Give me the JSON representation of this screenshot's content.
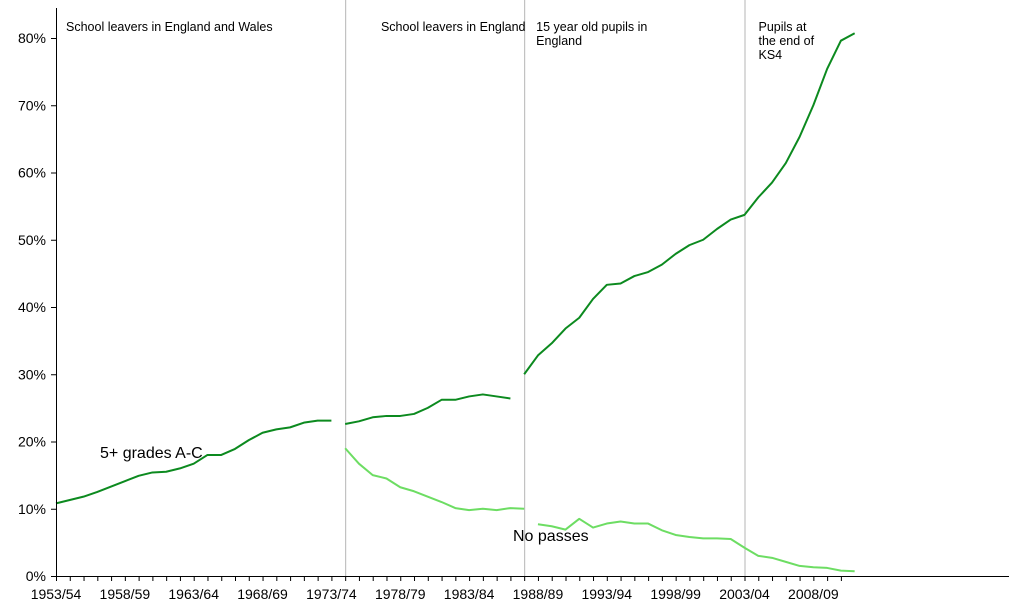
{
  "chart_data": {
    "type": "line",
    "x": [
      "1953/54",
      "1954/55",
      "1955/56",
      "1956/57",
      "1957/58",
      "1958/59",
      "1959/60",
      "1960/61",
      "1961/62",
      "1962/63",
      "1963/64",
      "1964/65",
      "1965/66",
      "1966/67",
      "1967/68",
      "1968/69",
      "1969/70",
      "1970/71",
      "1971/72",
      "1972/73",
      "1973/74",
      "1974/75",
      "1975/76",
      "1976/77",
      "1977/78",
      "1978/79",
      "1979/80",
      "1980/81",
      "1981/82",
      "1982/83",
      "1983/84",
      "1984/85",
      "1985/86",
      "1986/87",
      "1987/88",
      "1988/89",
      "1989/90",
      "1990/91",
      "1991/92",
      "1992/93",
      "1993/94",
      "1994/95",
      "1995/96",
      "1996/97",
      "1997/98",
      "1998/99",
      "1999/00",
      "2000/01",
      "2001/02",
      "2002/03",
      "2003/04",
      "2004/05",
      "2005/06",
      "2006/07",
      "2007/08",
      "2008/09",
      "2009/10",
      "2010/11"
    ],
    "x_tick_labels": [
      "1953/54",
      "1958/59",
      "1963/64",
      "1968/69",
      "1973/74",
      "1978/79",
      "1983/84",
      "1988/89",
      "1993/94",
      "1998/99",
      "2003/04",
      "2008/09"
    ],
    "ylim": [
      0,
      80
    ],
    "y_ticks": [
      0,
      10,
      20,
      30,
      40,
      50,
      60,
      70,
      80
    ],
    "y_tick_labels": [
      "0%",
      "10%",
      "20%",
      "30%",
      "40%",
      "50%",
      "60%",
      "70%",
      "80%"
    ],
    "grid": false,
    "series": [
      {
        "name": "5+ grades A-C",
        "color": "#0c8a1f",
        "segments": [
          {
            "start": "1953/54",
            "values": [
              10.8,
              11.3,
              11.8,
              12.5,
              13.3,
              14.1,
              14.9,
              15.4,
              15.5,
              16.0,
              16.7,
              18.0,
              18.0,
              18.9,
              20.2,
              21.3,
              21.8,
              22.1,
              22.8,
              23.1,
              23.1
            ]
          },
          {
            "start": "1974/75",
            "values": [
              22.6,
              23.0,
              23.6,
              23.8,
              23.8,
              24.1,
              25.0,
              26.2,
              26.2,
              26.7,
              27.0,
              26.7,
              26.4
            ]
          },
          {
            "start": "1987/88",
            "values": [
              30.0,
              32.8,
              34.6,
              36.8,
              38.4,
              41.2,
              43.3,
              43.5,
              44.6,
              45.2,
              46.3,
              47.9,
              49.2,
              50.0,
              51.6,
              53.0,
              53.7,
              56.3,
              58.5,
              61.4,
              65.3,
              70.0,
              75.4,
              79.6,
              80.7
            ]
          }
        ]
      },
      {
        "name": "No passes",
        "color": "#6ddd63",
        "segments": [
          {
            "start": "1974/75",
            "values": [
              19.0,
              16.7,
              15.0,
              14.5,
              13.2,
              12.6,
              11.8,
              11.0,
              10.1,
              9.8,
              10.0,
              9.8,
              10.1,
              10.0
            ]
          },
          {
            "start": "1988/89",
            "values": [
              7.7,
              7.4,
              6.9,
              8.5,
              7.2,
              7.8,
              8.1,
              7.8,
              7.8,
              6.8,
              6.1,
              5.8,
              5.6,
              5.6,
              5.5,
              4.2,
              3.0,
              2.7,
              2.1,
              1.5,
              1.3,
              1.2,
              0.8,
              0.7
            ]
          }
        ]
      }
    ],
    "section_dividers": [
      "1974/75",
      "1987/88",
      "2003/04"
    ],
    "annotations": [
      {
        "lines": [
          "School leavers in England and Wales"
        ],
        "at": "1953/54"
      },
      {
        "lines": [
          "School leavers in England"
        ],
        "at": "1975/76"
      },
      {
        "lines": [
          "15 year old pupils in",
          "England"
        ],
        "at": "1987/88"
      },
      {
        "lines": [
          "Pupils at",
          "the end of",
          "KS4"
        ],
        "at": "2003/04"
      }
    ],
    "series_labels": [
      {
        "text": "5+ grades A-C",
        "series": 0
      },
      {
        "text": "No passes",
        "series": 1
      }
    ]
  }
}
